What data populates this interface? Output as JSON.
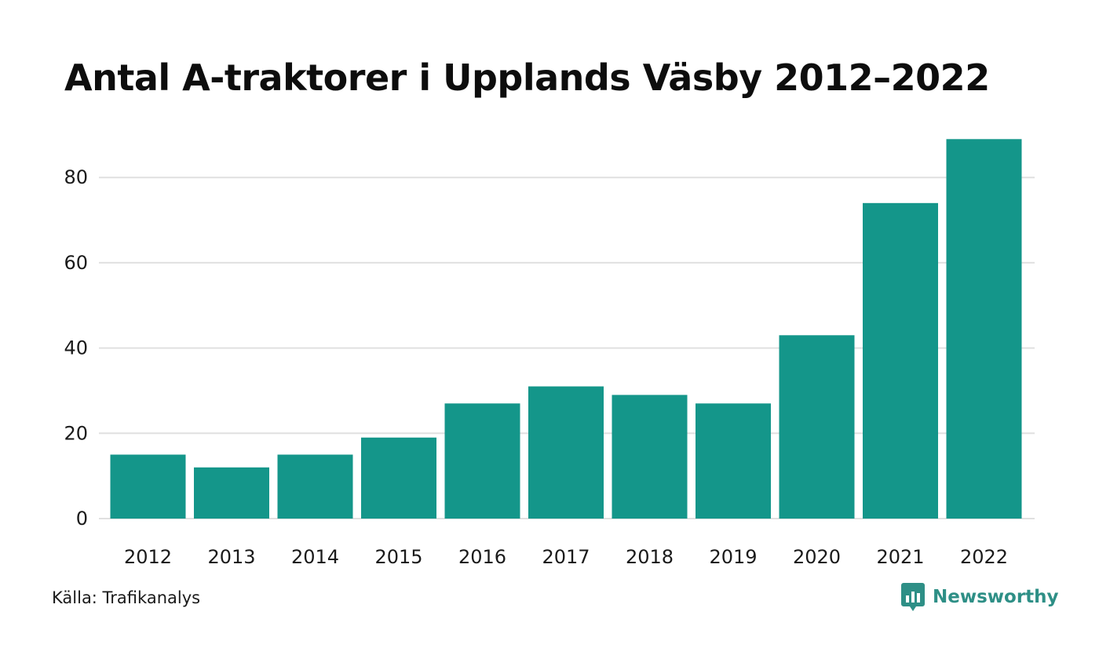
{
  "colors": {
    "bar": "#14968a",
    "grid": "#e0e0e0",
    "brand": "#2e8f86"
  },
  "source_text": "Källa: Trafikanalys",
  "brand": {
    "name": "Newsworthy",
    "icon": "newsworthy-logo-icon"
  },
  "chart_data": {
    "type": "bar",
    "title": "Antal A-traktorer i Upplands Väsby 2012–2022",
    "xlabel": "",
    "ylabel": "",
    "categories": [
      "2012",
      "2013",
      "2014",
      "2015",
      "2016",
      "2017",
      "2018",
      "2019",
      "2020",
      "2021",
      "2022"
    ],
    "values": [
      15,
      12,
      15,
      19,
      27,
      31,
      29,
      27,
      43,
      74,
      89
    ],
    "ylim": [
      0,
      92
    ],
    "yticks": [
      0,
      20,
      40,
      60,
      80
    ],
    "grid": true,
    "legend": "none"
  }
}
